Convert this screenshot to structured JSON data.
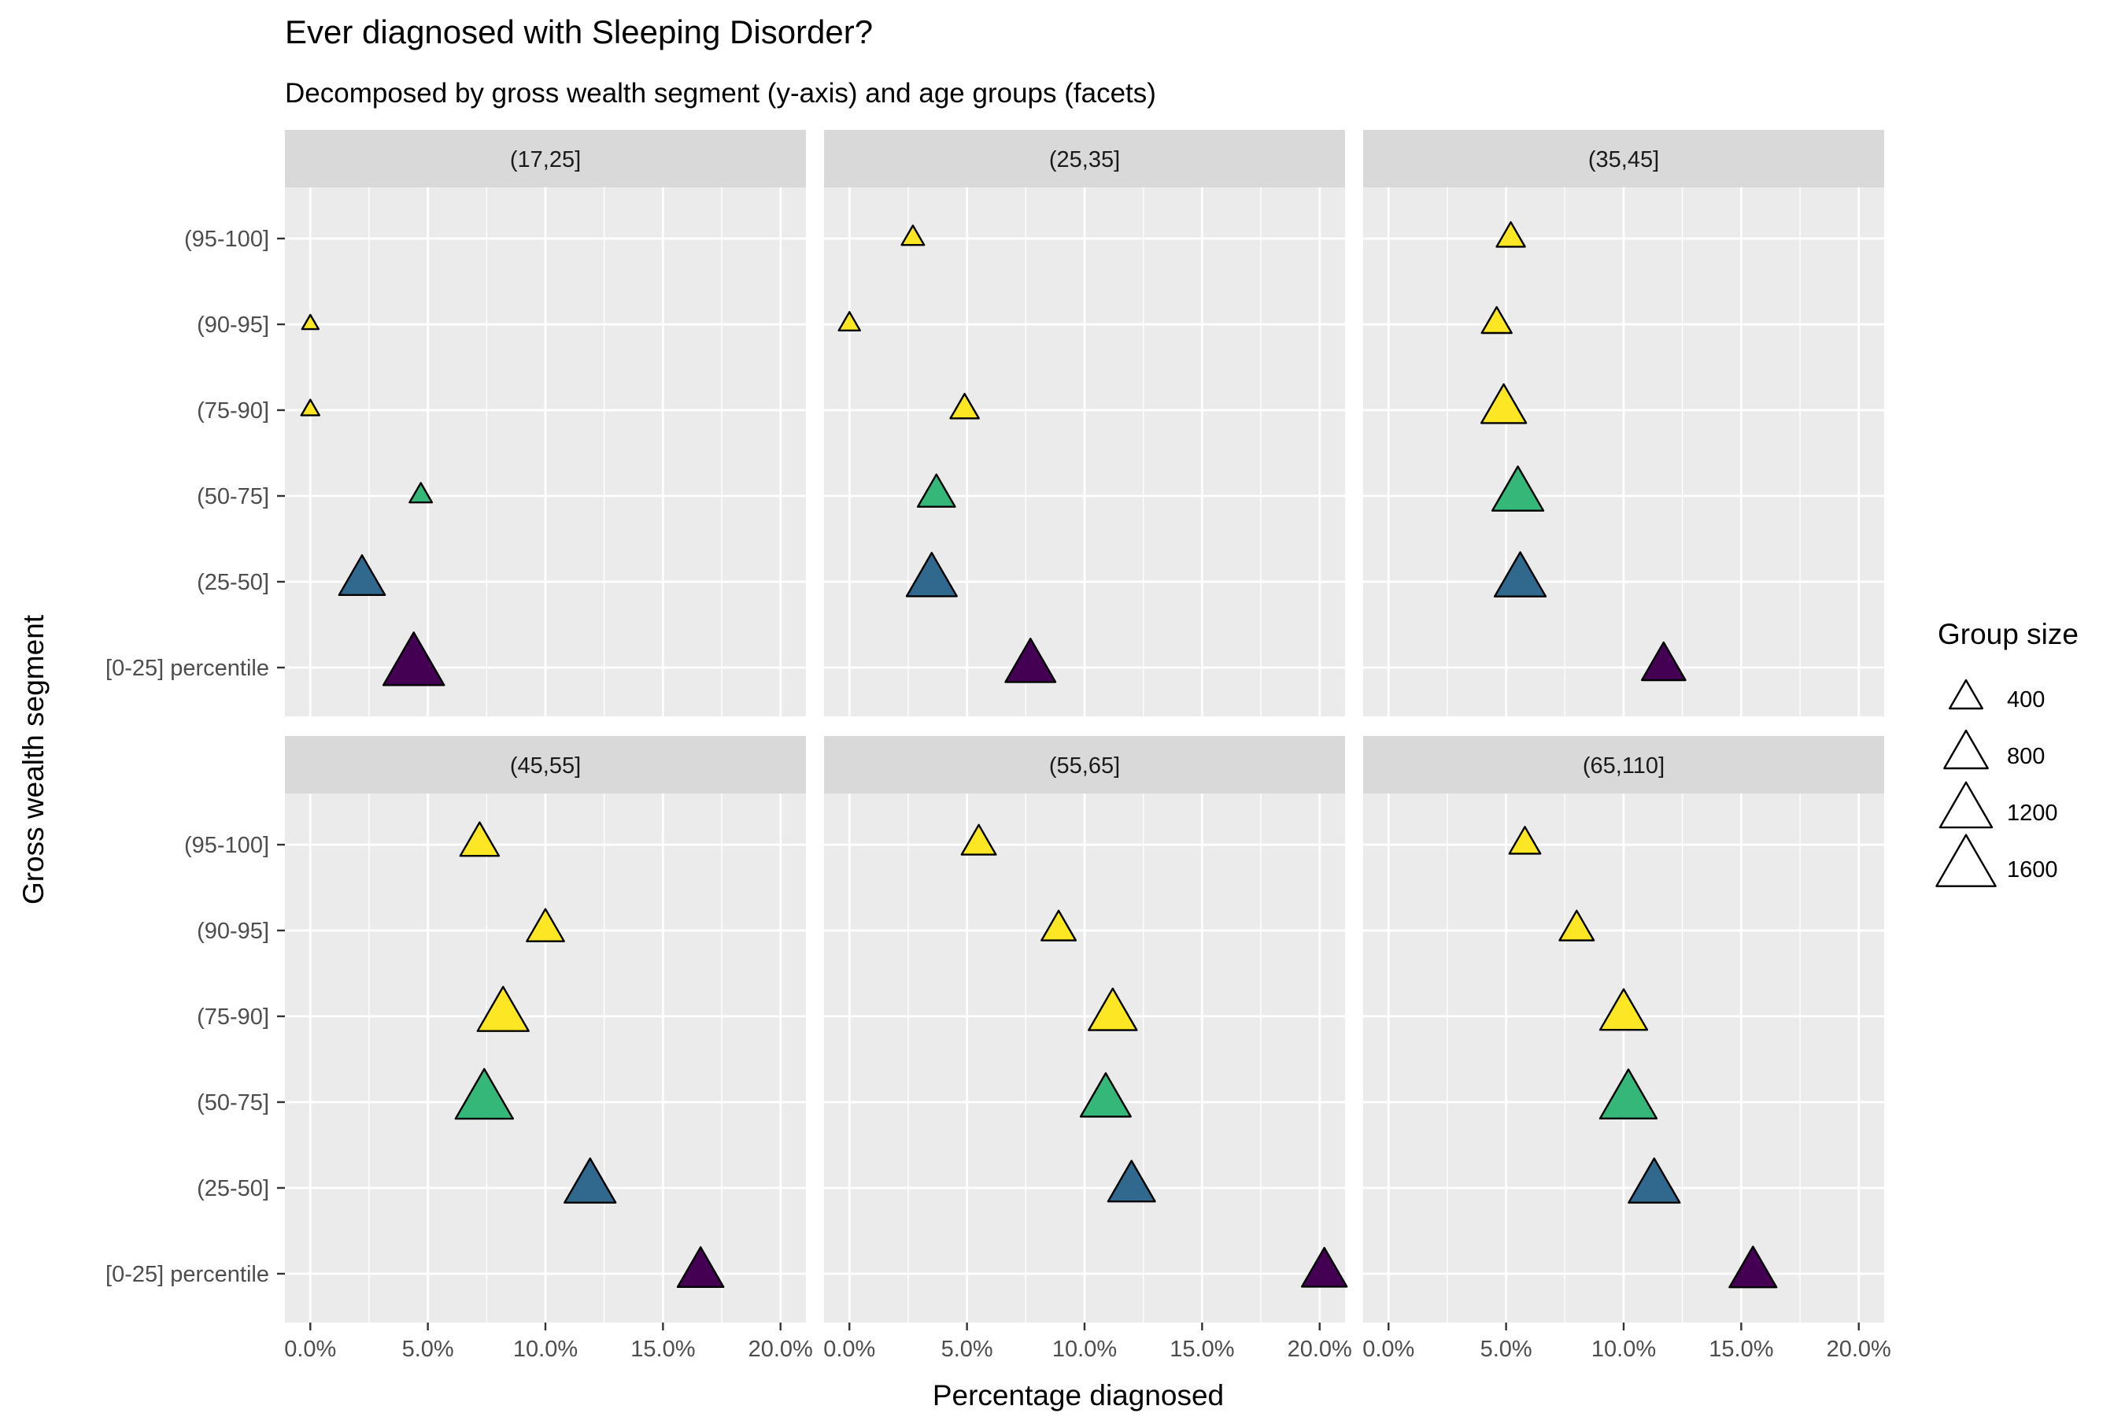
{
  "title": "Ever diagnosed with Sleeping Disorder?",
  "subtitle": "Decomposed by gross wealth segment (y-axis) and age groups (facets)",
  "chart_data": {
    "type": "scatter",
    "marker": "triangle",
    "xlabel": "Percentage diagnosed",
    "ylabel": "Gross wealth segment",
    "xlim": [
      0,
      0.2
    ],
    "x_ticks": [
      "0.0%",
      "5.0%",
      "10.0%",
      "15.0%",
      "20.0%"
    ],
    "y_categories": [
      "[0-25] percentile",
      "(25-50]",
      "(50-75]",
      "(75-90]",
      "(90-95]",
      "(95-100]"
    ],
    "category_colors": {
      "[0-25] percentile": "#440154",
      "(25-50]": "#31688e",
      "(50-75]": "#35b779",
      "(75-90]": "#fde725",
      "(90-95]": "#fde725",
      "(95-100]": "#fde725"
    },
    "grid": true,
    "facets": [
      {
        "label": "(17,25]",
        "points": [
          {
            "segment": "(95-100]",
            "x": null,
            "size": null
          },
          {
            "segment": "(90-95]",
            "x": 0.0,
            "size": 60
          },
          {
            "segment": "(75-90]",
            "x": 0.0,
            "size": 80
          },
          {
            "segment": "(50-75]",
            "x": 0.047,
            "size": 150
          },
          {
            "segment": "(25-50]",
            "x": 0.022,
            "size": 900
          },
          {
            "segment": "[0-25] percentile",
            "x": 0.044,
            "size": 1700
          }
        ]
      },
      {
        "label": "(25,35]",
        "points": [
          {
            "segment": "(95-100]",
            "x": 0.027,
            "size": 150
          },
          {
            "segment": "(90-95]",
            "x": 0.0,
            "size": 130
          },
          {
            "segment": "(75-90]",
            "x": 0.049,
            "size": 280
          },
          {
            "segment": "(50-75]",
            "x": 0.037,
            "size": 550
          },
          {
            "segment": "(25-50]",
            "x": 0.035,
            "size": 1100
          },
          {
            "segment": "[0-25] percentile",
            "x": 0.077,
            "size": 1100
          }
        ]
      },
      {
        "label": "(35,45]",
        "points": [
          {
            "segment": "(95-100]",
            "x": 0.052,
            "size": 280
          },
          {
            "segment": "(90-95]",
            "x": 0.046,
            "size": 320
          },
          {
            "segment": "(75-90]",
            "x": 0.049,
            "size": 850
          },
          {
            "segment": "(50-75]",
            "x": 0.055,
            "size": 1150
          },
          {
            "segment": "(25-50]",
            "x": 0.056,
            "size": 1150
          },
          {
            "segment": "[0-25] percentile",
            "x": 0.117,
            "size": 800
          }
        ]
      },
      {
        "label": "(45,55]",
        "points": [
          {
            "segment": "(95-100]",
            "x": 0.072,
            "size": 600
          },
          {
            "segment": "(90-95]",
            "x": 0.1,
            "size": 550
          },
          {
            "segment": "(75-90]",
            "x": 0.082,
            "size": 1150
          },
          {
            "segment": "(50-75]",
            "x": 0.074,
            "size": 1500
          },
          {
            "segment": "(25-50]",
            "x": 0.119,
            "size": 1150
          },
          {
            "segment": "[0-25] percentile",
            "x": 0.166,
            "size": 900
          }
        ]
      },
      {
        "label": "(55,65]",
        "points": [
          {
            "segment": "(95-100]",
            "x": 0.055,
            "size": 450
          },
          {
            "segment": "(90-95]",
            "x": 0.089,
            "size": 450
          },
          {
            "segment": "(75-90]",
            "x": 0.112,
            "size": 1000
          },
          {
            "segment": "(50-75]",
            "x": 0.109,
            "size": 1100
          },
          {
            "segment": "(25-50]",
            "x": 0.12,
            "size": 950
          },
          {
            "segment": "[0-25] percentile",
            "x": 0.202,
            "size": 850
          }
        ]
      },
      {
        "label": "(65,110]",
        "points": [
          {
            "segment": "(95-100]",
            "x": 0.058,
            "size": 350
          },
          {
            "segment": "(90-95]",
            "x": 0.08,
            "size": 450
          },
          {
            "segment": "(75-90]",
            "x": 0.1,
            "size": 950
          },
          {
            "segment": "(50-75]",
            "x": 0.102,
            "size": 1450
          },
          {
            "segment": "(25-50]",
            "x": 0.113,
            "size": 1150
          },
          {
            "segment": "[0-25] percentile",
            "x": 0.155,
            "size": 950
          }
        ]
      }
    ],
    "legend": {
      "title": "Group size",
      "position": "right",
      "entries": [
        {
          "label": "400",
          "size": 400
        },
        {
          "label": "800",
          "size": 800
        },
        {
          "label": "1200",
          "size": 1200
        },
        {
          "label": "1600",
          "size": 1600
        }
      ]
    }
  },
  "colors": {
    "panel_bg": "#ebebeb",
    "strip_bg": "#d9d9d9",
    "grid_major": "#ffffff"
  }
}
